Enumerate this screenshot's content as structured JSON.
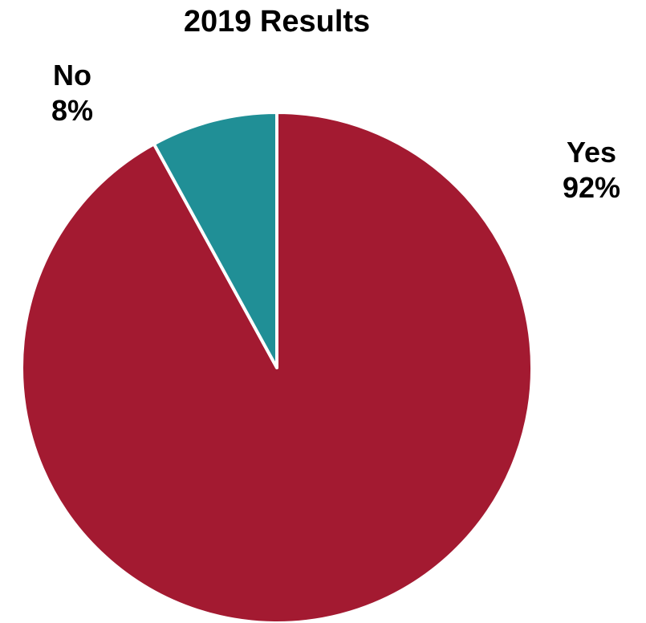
{
  "chart_data": {
    "type": "pie",
    "title": "2019 Results",
    "start_angle_deg": 0,
    "direction": "clockwise",
    "slices": [
      {
        "label": "Yes",
        "value": 92,
        "value_label": "92%",
        "color": "#A31A31"
      },
      {
        "label": "No",
        "value": 8,
        "value_label": "8%",
        "color": "#208F96"
      }
    ]
  }
}
